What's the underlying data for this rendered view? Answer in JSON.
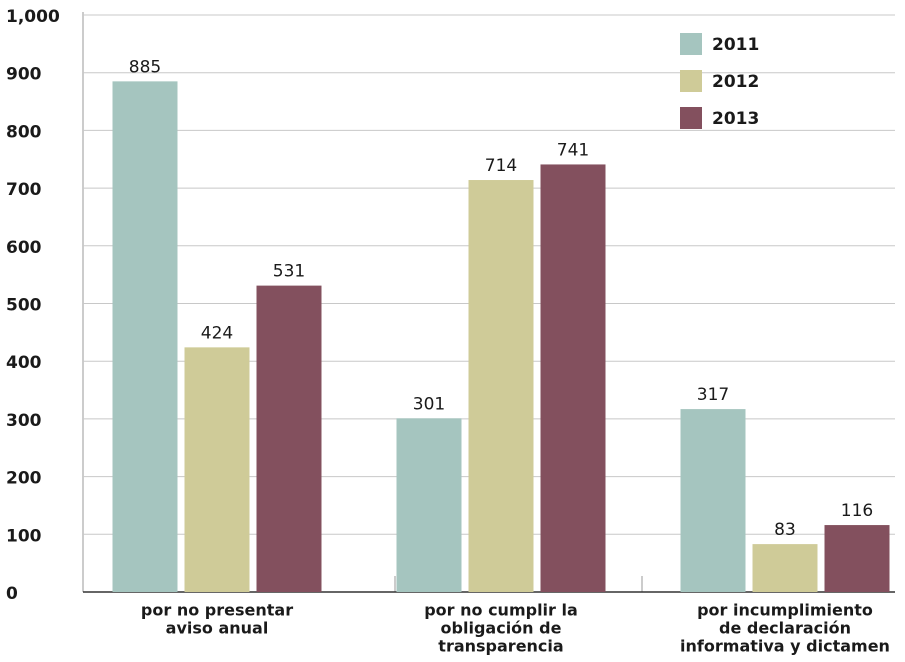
{
  "chart_data": {
    "type": "bar",
    "categories": [
      [
        "por no presentar",
        "aviso anual"
      ],
      [
        "por no cumplir la",
        "obligación de",
        "transparencia"
      ],
      [
        "por incumplimiento",
        "de declaración",
        "informativa y dictamen"
      ]
    ],
    "series": [
      {
        "name": "2011",
        "color": "#a5c5bf",
        "values": [
          885,
          301,
          317
        ]
      },
      {
        "name": "2012",
        "color": "#cfcb98",
        "values": [
          424,
          714,
          83
        ]
      },
      {
        "name": "2013",
        "color": "#83505e",
        "values": [
          531,
          741,
          116
        ]
      }
    ],
    "ylim": [
      0,
      1000
    ],
    "yticks": [
      0,
      100,
      200,
      300,
      400,
      500,
      600,
      700,
      800,
      900,
      {
        "value": 1000,
        "label": "1,000"
      }
    ],
    "grid": true,
    "legend": "top-right"
  }
}
